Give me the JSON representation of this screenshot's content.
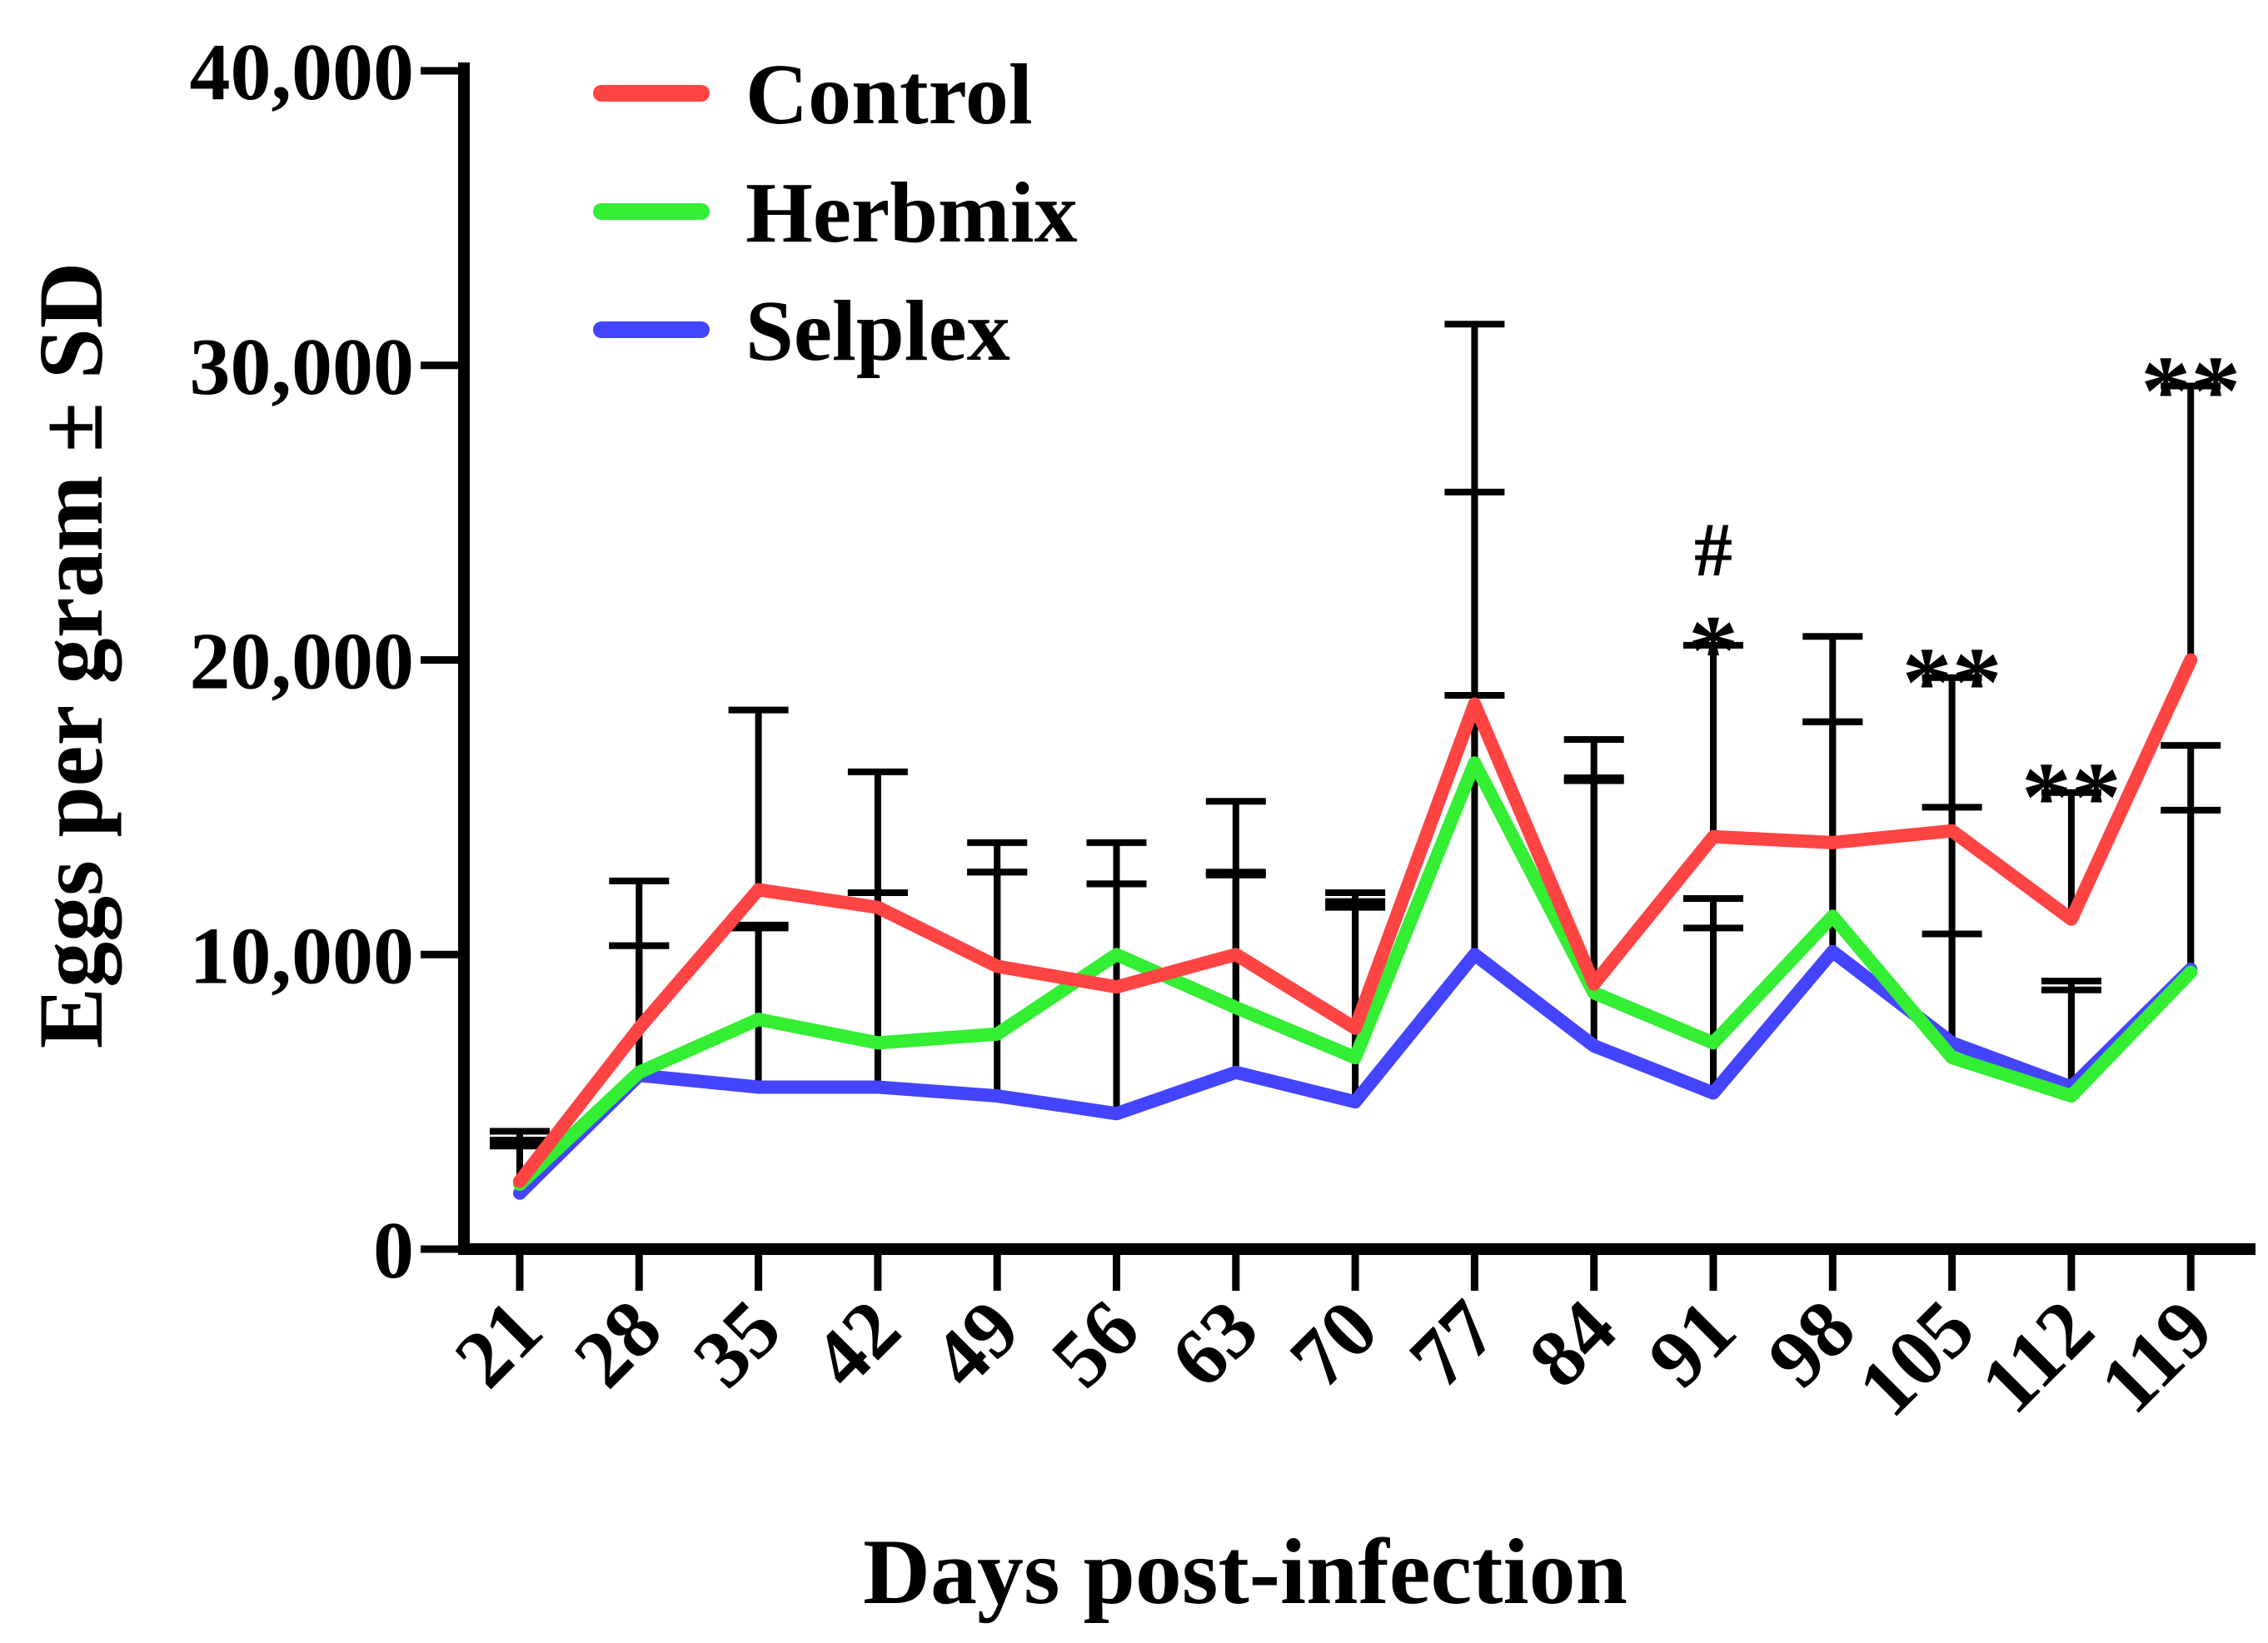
{
  "chart_data": {
    "type": "line",
    "title": "",
    "xlabel": "Days post-infection",
    "ylabel": "Eggs per gram ± SD",
    "ylim": [
      0,
      40000
    ],
    "yticks": [
      0,
      10000,
      20000,
      30000,
      40000
    ],
    "ytick_labels": [
      "0",
      "10,000",
      "20,000",
      "30,000",
      "40,000"
    ],
    "categories": [
      "21",
      "28",
      "35",
      "42",
      "49",
      "56",
      "63",
      "70",
      "77",
      "84",
      "91",
      "98",
      "105",
      "112",
      "119"
    ],
    "legend_position": "top-left",
    "series": [
      {
        "name": "Control",
        "color": "#ff4444",
        "values": [
          2300,
          7500,
          12200,
          11600,
          9600,
          8900,
          10000,
          7500,
          18500,
          9000,
          14000,
          13800,
          14200,
          11200,
          20000
        ],
        "sd": [
          1700,
          5000,
          6100,
          4600,
          4200,
          4900,
          5200,
          4600,
          12900,
          8300,
          6500,
          7000,
          5200,
          4300,
          9300
        ]
      },
      {
        "name": "Herbmix",
        "color": "#33ee33",
        "values": [
          2200,
          6000,
          7800,
          7000,
          7300,
          10000,
          8200,
          6500,
          16500,
          8700,
          7000,
          11300,
          6500,
          5200,
          9400
        ],
        "sd": [
          1300,
          4300,
          3100,
          5100,
          5500,
          2400,
          4600,
          5300,
          9200,
          7300,
          4900,
          6600,
          8500,
          3900,
          5500
        ]
      },
      {
        "name": "Selplex",
        "color": "#4444ff",
        "values": [
          1900,
          5900,
          5500,
          5500,
          5200,
          4600,
          6000,
          5000,
          10000,
          6900,
          5300,
          10100,
          7000,
          5500,
          9500
        ],
        "sd": [
          1800,
          4400,
          5500,
          6600,
          7600,
          7800,
          6700,
          6600,
          8800,
          9000,
          5600,
          7800,
          3700,
          3300,
          7600
        ]
      }
    ],
    "annotations": [
      {
        "category": "91",
        "text": "#"
      },
      {
        "category": "91",
        "text": "*"
      },
      {
        "category": "105",
        "text": "**"
      },
      {
        "category": "112",
        "text": "**"
      },
      {
        "category": "119",
        "text": "**"
      }
    ]
  }
}
